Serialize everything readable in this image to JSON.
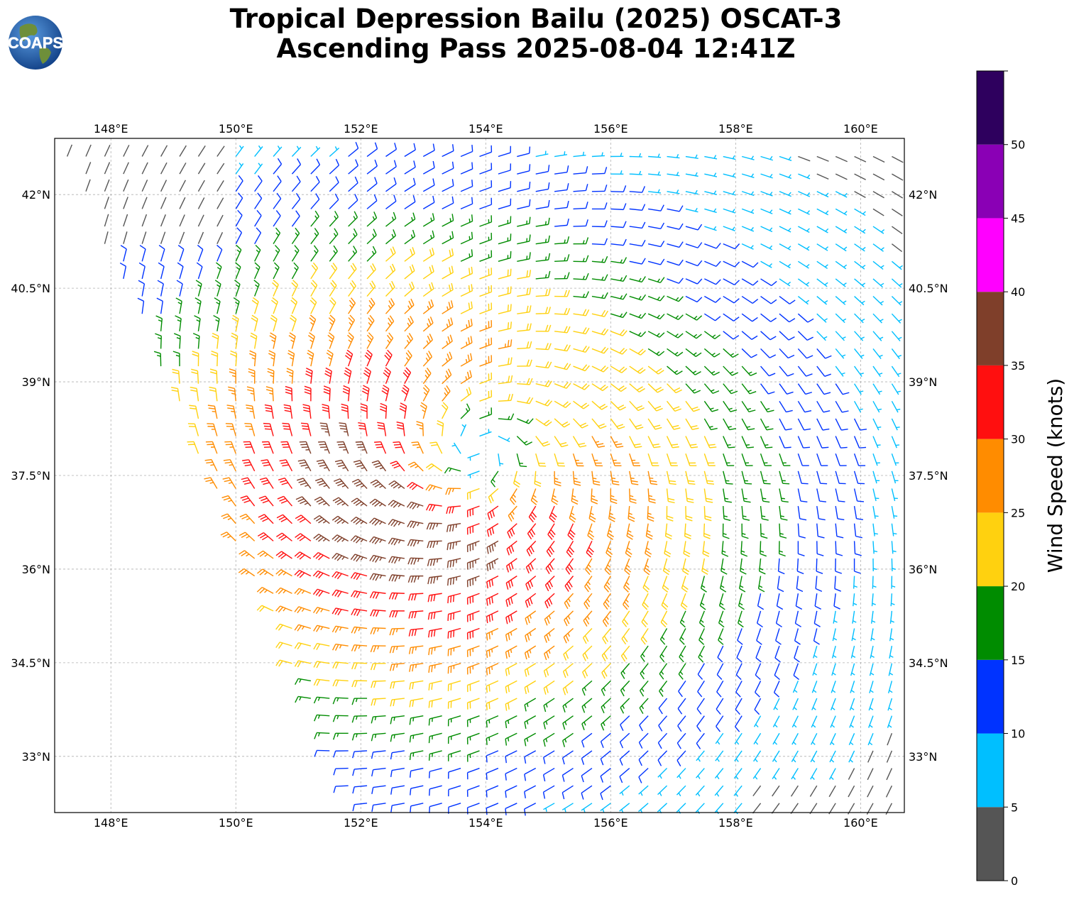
{
  "title": {
    "line1": "Tropical Depression Bailu (2025) OSCAT-3",
    "line2": "Ascending Pass 2025-08-04 12:41Z"
  },
  "logo": {
    "text": "COAPS",
    "icon": "globe-logo-icon"
  },
  "map": {
    "lon_range": [
      147.1,
      160.7
    ],
    "lat_range": [
      32.1,
      42.9
    ],
    "lon_ticks": [
      148,
      150,
      152,
      154,
      156,
      158,
      160
    ],
    "lat_ticks": [
      33,
      34.5,
      36,
      37.5,
      39,
      40.5,
      42
    ],
    "lon_tick_labels": [
      "148°E",
      "150°E",
      "152°E",
      "154°E",
      "156°E",
      "158°E",
      "160°E"
    ],
    "lat_tick_labels": [
      "33°N",
      "34.5°N",
      "36°N",
      "37.5°N",
      "39°N",
      "40.5°N",
      "42°N"
    ],
    "grid": true
  },
  "chart_data": {
    "type": "wind-barbs",
    "center": {
      "lon": 153.9,
      "lat": 37.9
    },
    "swath_polygon": [
      [
        147.2,
        42.8
      ],
      [
        151.9,
        32.1
      ],
      [
        160.7,
        32.1
      ],
      [
        160.7,
        42.8
      ]
    ],
    "units": "knots"
  },
  "colorbar": {
    "label": "Wind Speed (knots)",
    "min": 0,
    "max": 55,
    "tick_values": [
      0,
      5,
      10,
      15,
      20,
      25,
      30,
      35,
      40,
      45,
      50
    ],
    "tick_labels": [
      "0",
      "5",
      "10",
      "15",
      "20",
      "25",
      "30",
      "35",
      "40",
      "45",
      "50"
    ],
    "bins": [
      {
        "from": 0,
        "to": 5,
        "color": "#555555"
      },
      {
        "from": 5,
        "to": 10,
        "color": "#00bfff"
      },
      {
        "from": 10,
        "to": 15,
        "color": "#0033ff"
      },
      {
        "from": 15,
        "to": 20,
        "color": "#008c00"
      },
      {
        "from": 20,
        "to": 25,
        "color": "#ffd10f"
      },
      {
        "from": 25,
        "to": 30,
        "color": "#ff8c00"
      },
      {
        "from": 30,
        "to": 35,
        "color": "#ff0f0f"
      },
      {
        "from": 35,
        "to": 40,
        "color": "#7f3f2a"
      },
      {
        "from": 40,
        "to": 45,
        "color": "#ff00ff"
      },
      {
        "from": 45,
        "to": 50,
        "color": "#8a00b5"
      },
      {
        "from": 50,
        "to": 55,
        "color": "#2e005e"
      }
    ]
  }
}
